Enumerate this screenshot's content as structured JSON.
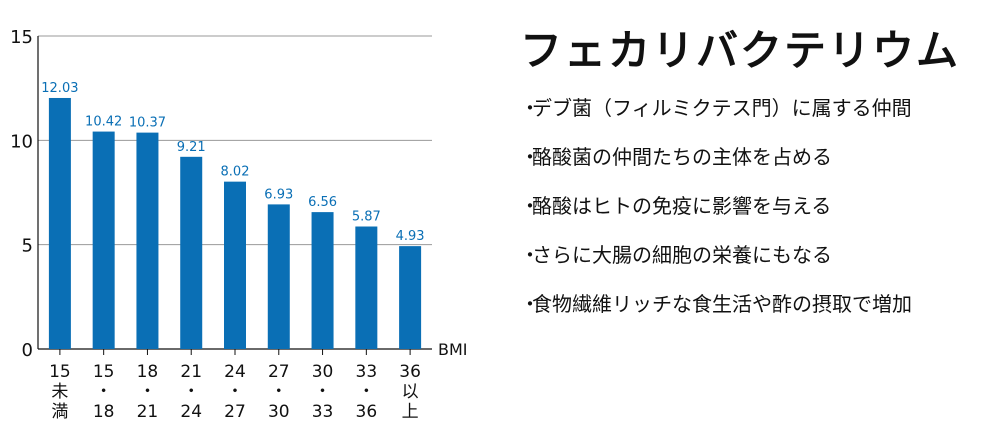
{
  "chart_data": {
    "type": "bar",
    "categories": [
      [
        "15",
        "未",
        "満"
      ],
      [
        "15",
        "・",
        "18"
      ],
      [
        "18",
        "・",
        "21"
      ],
      [
        "21",
        "・",
        "24"
      ],
      [
        "24",
        "・",
        "27"
      ],
      [
        "27",
        "・",
        "30"
      ],
      [
        "30",
        "・",
        "33"
      ],
      [
        "33",
        "・",
        "36"
      ],
      [
        "36",
        "以",
        "上"
      ]
    ],
    "values": [
      12.03,
      10.42,
      10.37,
      9.21,
      8.02,
      6.93,
      6.56,
      5.87,
      4.93
    ],
    "data_labels": [
      "12.03",
      "10.42",
      "10.37",
      "9.21",
      "8.02",
      "6.93",
      "6.56",
      "5.87",
      "4.93"
    ],
    "xlabel": "BMI",
    "ylim": [
      0,
      15
    ],
    "yticks": [
      0,
      5,
      10,
      15
    ],
    "grid": true,
    "bar_color": "#0a6fb5",
    "label_color": "#0a6fb5"
  },
  "panel": {
    "title": "フェカリバクテリウム",
    "bullet": "・",
    "items": [
      "デブ菌（フィルミクテス門）に属する仲間",
      "酪酸菌の仲間たちの主体を占める",
      "酪酸はヒトの免疫に影響を与える",
      "さらに大腸の細胞の栄養にもなる",
      "食物繊維リッチな食生活や酢の摂取で増加"
    ]
  }
}
